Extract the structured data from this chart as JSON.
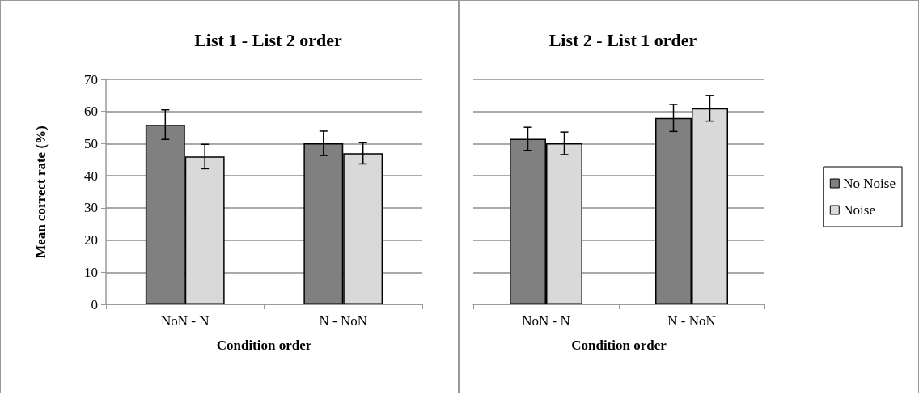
{
  "chart_data": [
    {
      "type": "bar",
      "title": "List 1 - List 2 order",
      "xlabel": "Condition order",
      "ylabel": "Mean correct rate (%)",
      "categories": [
        "NoN - N",
        "N - NoN"
      ],
      "series": [
        {
          "color": "#808080",
          "values": [
            55.9,
            50.1
          ],
          "errors": [
            4.6,
            3.8
          ]
        },
        {
          "color": "#d9d9d9",
          "values": [
            46.0,
            47.0
          ],
          "errors": [
            3.8,
            3.3
          ]
        }
      ],
      "ylim": [
        0,
        70
      ],
      "yticks": [
        0,
        10,
        20,
        30,
        40,
        50,
        60,
        70
      ],
      "grid": "y",
      "legend": false
    },
    {
      "type": "bar",
      "title": "List 2 - List 1 order",
      "xlabel": "Condition order",
      "categories": [
        "NoN - N",
        "N - NoN"
      ],
      "series": [
        {
          "name": "No Noise",
          "color": "#808080",
          "values": [
            51.5,
            58.0
          ],
          "errors": [
            3.6,
            4.2
          ]
        },
        {
          "name": "Noise",
          "color": "#d9d9d9",
          "values": [
            50.1,
            61.0
          ],
          "errors": [
            3.5,
            4.0
          ]
        }
      ],
      "ylim": [
        0,
        70
      ],
      "yticks": [
        0,
        10,
        20,
        30,
        40,
        50,
        60,
        70
      ],
      "grid": "y",
      "legend": "right",
      "tick_labels": "x"
    }
  ]
}
